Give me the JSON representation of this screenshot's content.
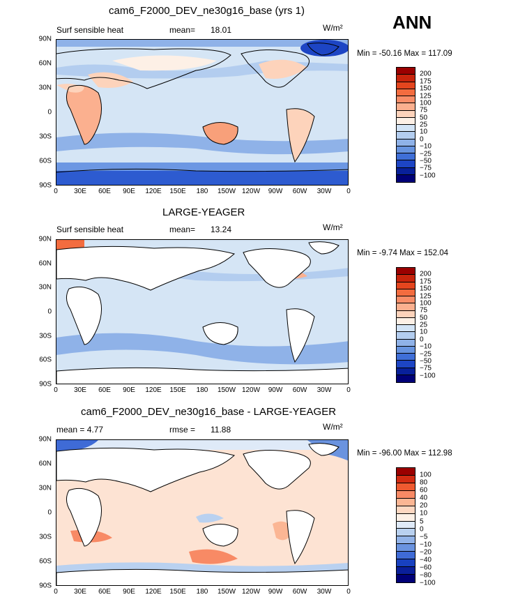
{
  "header": {
    "season": "ANN"
  },
  "panels": [
    {
      "title": "cam6_F2000_DEV_ne30g16_base (yrs 1)",
      "left_label": "Surf sensible heat",
      "stat_label": "mean=",
      "stat_value": "18.01",
      "units": "W/m²",
      "minmax": "Min = -50.16 Max = 117.09",
      "colorbar_labels": [
        "200",
        "175",
        "150",
        "125",
        "100",
        "75",
        "50",
        "25",
        "10",
        "0",
        "−10",
        "−25",
        "−50",
        "−75",
        "−100"
      ]
    },
    {
      "title": "LARGE-YEAGER",
      "left_label": "Surf sensible heat",
      "stat_label": "mean=",
      "stat_value": "13.24",
      "units": "W/m²",
      "minmax": "Min = -9.74 Max = 152.04",
      "colorbar_labels": [
        "200",
        "175",
        "150",
        "125",
        "100",
        "75",
        "50",
        "25",
        "10",
        "0",
        "−10",
        "−25",
        "−50",
        "−75",
        "−100"
      ]
    },
    {
      "title": "cam6_F2000_DEV_ne30g16_base - LARGE-YEAGER",
      "left_label": "mean = 4.77",
      "stat_label": "rmse =",
      "stat_value": "11.88",
      "units": "W/m²",
      "minmax": "Min = -96.00 Max = 112.98",
      "colorbar_labels": [
        "100",
        "80",
        "60",
        "40",
        "20",
        "10",
        "5",
        "0",
        "−5",
        "−10",
        "−20",
        "−40",
        "−60",
        "−80",
        "−100"
      ]
    }
  ],
  "chart_data": {
    "type": "heatmap",
    "variable": "Surf sensible heat",
    "lat_ticks": [
      "90N",
      "60N",
      "30N",
      "0",
      "30S",
      "60S",
      "90S"
    ],
    "lon_ticks": [
      "0",
      "30E",
      "60E",
      "90E",
      "120E",
      "150E",
      "180",
      "150W",
      "120W",
      "90W",
      "60W",
      "30W",
      "0"
    ],
    "colors": {
      "full_field": [
        "#9b0000",
        "#c8240c",
        "#e4451e",
        "#f36c3f",
        "#f88d68",
        "#fbb08f",
        "#fdd3bb",
        "#fdf0e6",
        "#d3e4f6",
        "#b3cdef",
        "#8fb2e8",
        "#6794e0",
        "#3f6fd8",
        "#1d45c4",
        "#08209a",
        "#000077"
      ],
      "difference": [
        "#9b0000",
        "#d22b12",
        "#ef5a30",
        "#f88a65",
        "#fbb694",
        "#fdd8c2",
        "#fdf1e7",
        "#dfeaf8",
        "#b9d1f0",
        "#92b3e8",
        "#6a93df",
        "#3f6bd6",
        "#1841c0",
        "#0a1f9a",
        "#000077"
      ]
    },
    "panels": [
      {
        "name": "cam6_F2000_DEV_ne30g16_base (yrs 1)",
        "mean": 18.01,
        "min": -50.16,
        "max": 117.09
      },
      {
        "name": "LARGE-YEAGER",
        "mean": 13.24,
        "min": -9.74,
        "max": 152.04
      },
      {
        "name": "cam6_F2000_DEV_ne30g16_base - LARGE-YEAGER",
        "mean": 4.77,
        "rmse": 11.88,
        "min": -96.0,
        "max": 112.98
      }
    ]
  }
}
